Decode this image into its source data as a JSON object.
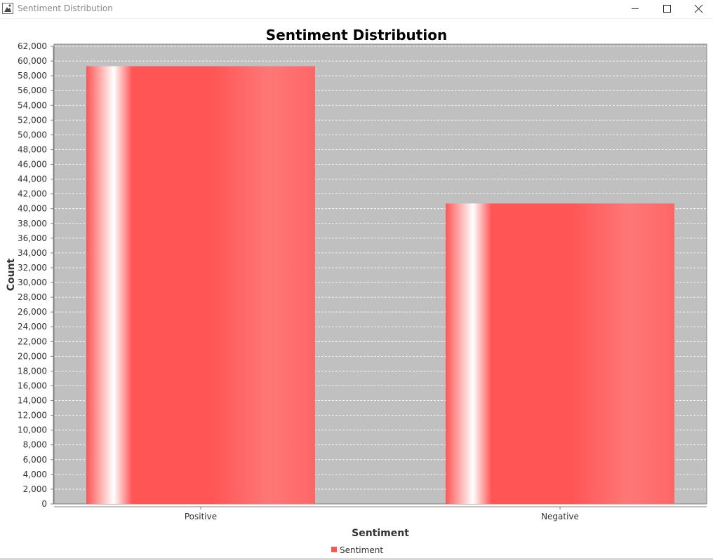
{
  "window": {
    "title": "Sentiment Distribution",
    "icon": "java-cup-icon",
    "controls": [
      "minimize-icon",
      "maximize-icon",
      "close-icon"
    ]
  },
  "colors": {
    "plot_background": "#c0c0c0",
    "bar_base": "#ff5555",
    "bar_highlight": "#ffffff",
    "gridline": "#ffffff"
  },
  "chart_data": {
    "type": "bar",
    "title": "Sentiment Distribution",
    "xlabel": "Sentiment",
    "ylabel": "Count",
    "categories": [
      "Positive",
      "Negative"
    ],
    "series": [
      {
        "name": "Sentiment",
        "values": [
          59300,
          40700
        ]
      }
    ],
    "ylim": [
      0,
      62000
    ],
    "yticks": [
      0,
      2000,
      4000,
      6000,
      8000,
      10000,
      12000,
      14000,
      16000,
      18000,
      20000,
      22000,
      24000,
      26000,
      28000,
      30000,
      32000,
      34000,
      36000,
      38000,
      40000,
      42000,
      44000,
      46000,
      48000,
      50000,
      52000,
      54000,
      56000,
      58000,
      60000,
      62000
    ],
    "ytick_labels": [
      "0",
      "2,000",
      "4,000",
      "6,000",
      "8,000",
      "10,000",
      "12,000",
      "14,000",
      "16,000",
      "18,000",
      "20,000",
      "22,000",
      "24,000",
      "26,000",
      "28,000",
      "30,000",
      "32,000",
      "34,000",
      "36,000",
      "38,000",
      "40,000",
      "42,000",
      "44,000",
      "46,000",
      "48,000",
      "50,000",
      "52,000",
      "54,000",
      "56,000",
      "58,000",
      "60,000",
      "62,000"
    ],
    "grid": true,
    "legend": {
      "position": "bottom",
      "entries": [
        "Sentiment"
      ]
    }
  }
}
